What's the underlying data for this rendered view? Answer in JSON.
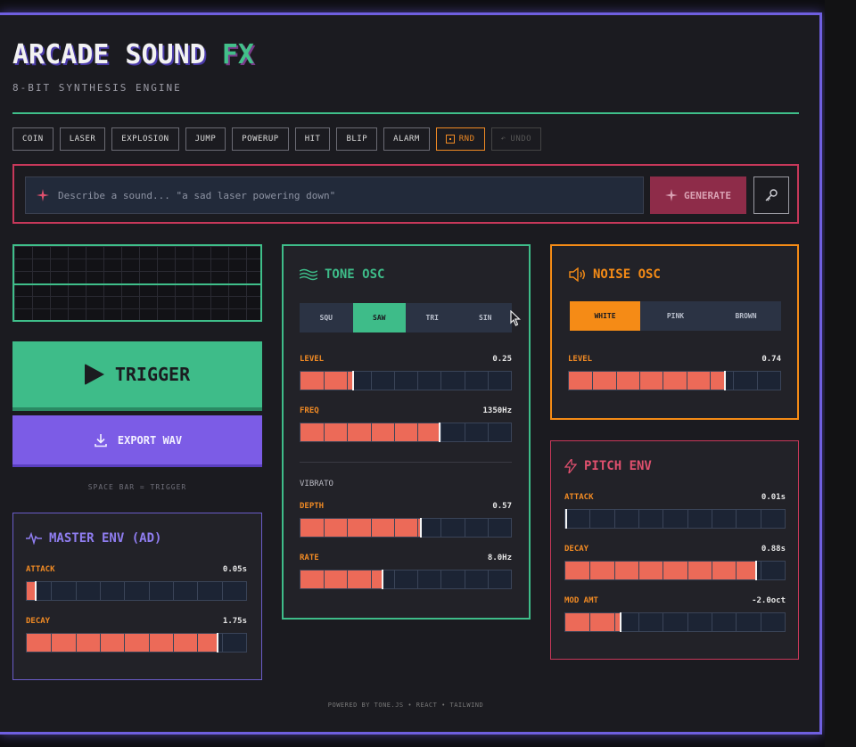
{
  "app": {
    "title_main": "ARCADE SOUND",
    "title_accent": "FX",
    "subtitle": "8-BIT SYNTHESIS ENGINE"
  },
  "presets": [
    "COIN",
    "LASER",
    "EXPLOSION",
    "JUMP",
    "POWERUP",
    "HIT",
    "BLIP",
    "ALARM"
  ],
  "rnd_label": "RND",
  "undo_label": "UNDO",
  "prompt": {
    "placeholder": "Describe a sound... \"a sad laser powering down\"",
    "generate_label": "GENERATE",
    "icons": {
      "sparkle": "sparkle-icon",
      "key": "key-icon"
    }
  },
  "controls": {
    "trigger_label": "TRIGGER",
    "export_label": "EXPORT WAV",
    "hint": "SPACE BAR = TRIGGER"
  },
  "master_env": {
    "title": "MASTER ENV (AD)",
    "attack": {
      "label": "ATTACK",
      "value": "0.05s",
      "level": 0.04
    },
    "decay": {
      "label": "DECAY",
      "value": "1.75s",
      "level": 0.87
    }
  },
  "tone_osc": {
    "title": "TONE OSC",
    "waves": [
      "SQU",
      "SAW",
      "TRI",
      "SIN"
    ],
    "selected_wave": "SAW",
    "level": {
      "label": "LEVEL",
      "value": "0.25",
      "level": 0.25
    },
    "freq": {
      "label": "FREQ",
      "value": "1350Hz",
      "level": 0.66
    },
    "vibrato_label": "VIBRATO",
    "depth": {
      "label": "DEPTH",
      "value": "0.57",
      "level": 0.57
    },
    "rate": {
      "label": "RATE",
      "value": "8.0Hz",
      "level": 0.39
    }
  },
  "noise_osc": {
    "title": "NOISE OSC",
    "types": [
      "WHITE",
      "PINK",
      "BROWN"
    ],
    "selected_type": "WHITE",
    "level": {
      "label": "LEVEL",
      "value": "0.74",
      "level": 0.74
    }
  },
  "pitch_env": {
    "title": "PITCH ENV",
    "attack": {
      "label": "ATTACK",
      "value": "0.01s",
      "level": 0.0
    },
    "decay": {
      "label": "DECAY",
      "value": "0.88s",
      "level": 0.87
    },
    "mod_amt": {
      "label": "MOD AMT",
      "value": "-2.0oct",
      "level": 0.25
    }
  },
  "footer": "POWERED BY TONE.JS • REACT • TAILWIND",
  "colors": {
    "green": "#3ebc89",
    "purple": "#7c5ce6",
    "orange": "#f58b16",
    "red": "#c7385a",
    "fill": "#ec6a58"
  }
}
